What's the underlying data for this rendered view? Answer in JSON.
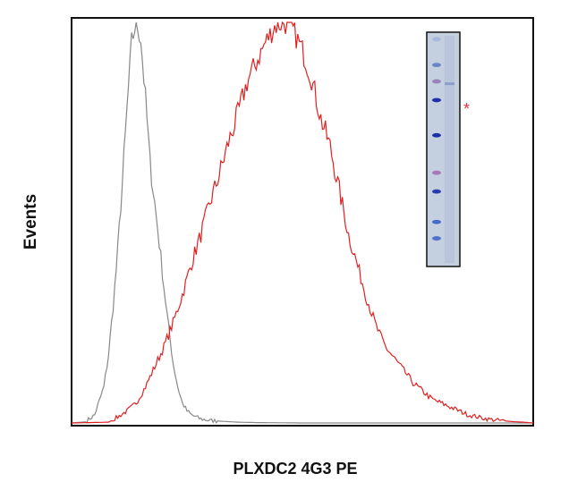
{
  "chart_data": {
    "type": "line",
    "title": "",
    "xlabel": "PLXDC2 4G3 PE",
    "ylabel": "Events",
    "xlim": [
      0,
      100
    ],
    "ylim": [
      0,
      100
    ],
    "grid": false,
    "legend": "none",
    "series": [
      {
        "color": "#888888",
        "x": [
          0,
          3,
          5,
          7,
          8,
          9,
          10,
          11,
          12,
          13,
          14,
          15,
          16,
          17,
          18,
          19,
          20,
          21,
          22,
          23,
          24,
          25,
          26,
          28,
          30,
          33,
          36,
          40,
          50,
          60,
          75,
          100
        ],
        "y": [
          0,
          0.3,
          2,
          9,
          17,
          29,
          43,
          60,
          78,
          95,
          100,
          96,
          81,
          65,
          55,
          45,
          34,
          24,
          15,
          9,
          5,
          3,
          2,
          1,
          0.6,
          0.4,
          0.2,
          0.1,
          0,
          0,
          0,
          0
        ]
      },
      {
        "color": "#e02020",
        "x": [
          0,
          8,
          10,
          12,
          14,
          16,
          18,
          20,
          22,
          24,
          26,
          28,
          30,
          32,
          34,
          36,
          38,
          40,
          42,
          44,
          46,
          48,
          50,
          52,
          54,
          56,
          58,
          60,
          62,
          64,
          66,
          68,
          70,
          72,
          74,
          76,
          78,
          80,
          82,
          84,
          86,
          88,
          90,
          92,
          94,
          96,
          98,
          100
        ],
        "y": [
          0,
          0.2,
          1.5,
          3,
          5,
          9,
          14,
          19,
          25,
          32,
          40,
          47,
          55,
          62,
          70,
          77,
          85,
          90,
          95,
          99,
          100,
          98,
          93,
          86,
          76,
          69,
          58,
          47,
          39,
          31,
          24,
          19,
          16,
          13,
          10,
          8,
          6,
          5,
          4,
          3,
          2,
          1.5,
          1,
          0.7,
          0.5,
          0.3,
          0.2,
          0
        ]
      }
    ],
    "inset": {
      "type": "western-blot",
      "marker": "*",
      "marker_color": "#e0303a",
      "background": "#c4cfe0",
      "ladder_bands": [
        {
          "pos": 0.03,
          "color": "#a8b8d8"
        },
        {
          "pos": 0.14,
          "color": "#6a86c4"
        },
        {
          "pos": 0.21,
          "color": "#9a82b8"
        },
        {
          "pos": 0.29,
          "color": "#1e2fa8"
        },
        {
          "pos": 0.44,
          "color": "#1e2fa8"
        },
        {
          "pos": 0.6,
          "color": "#a878b8"
        },
        {
          "pos": 0.68,
          "color": "#2a3ab0"
        },
        {
          "pos": 0.81,
          "color": "#4a68c8"
        },
        {
          "pos": 0.88,
          "color": "#5070cc"
        }
      ],
      "sample_band_pos": 0.22
    }
  }
}
